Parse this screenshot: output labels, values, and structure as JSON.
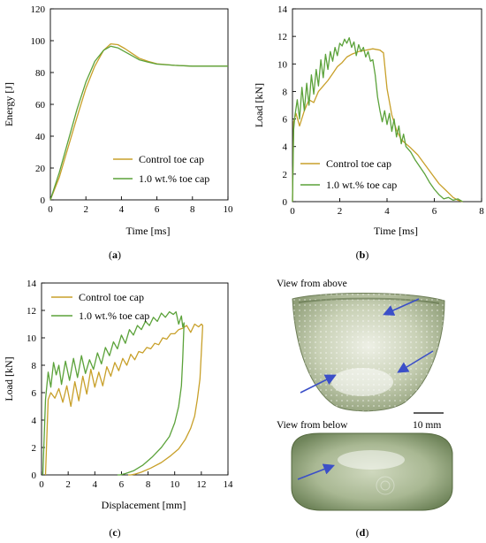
{
  "colors": {
    "control": "#C8A02A",
    "fiber": "#5BA23A",
    "arrow": "#3B4FC8"
  },
  "chart_data": [
    {
      "type": "line",
      "panel_label": "a",
      "xlabel": "Time [ms]",
      "ylabel": "Energy [J]",
      "xlim": [
        0,
        10
      ],
      "ylim": [
        0,
        120
      ],
      "xticks": [
        "0",
        "2",
        "4",
        "6",
        "8",
        "10"
      ],
      "yticks": [
        "0",
        "20",
        "40",
        "60",
        "80",
        "100",
        "120"
      ],
      "grid": false,
      "legend": "bottom-right",
      "series": [
        {
          "name": "Control toe cap",
          "color_key": "control",
          "x": [
            0,
            0.5,
            1,
            1.5,
            2,
            2.5,
            3,
            3.4,
            3.8,
            4.2,
            4.6,
            5,
            5.5,
            6,
            7,
            8,
            9,
            10
          ],
          "y": [
            0,
            14,
            33,
            52,
            70,
            84,
            94,
            98,
            97.5,
            95,
            92,
            89,
            87,
            85.5,
            84.5,
            84,
            84,
            84
          ]
        },
        {
          "name": "1.0 wt.% toe cap",
          "color_key": "fiber",
          "x": [
            0,
            0.5,
            1,
            1.5,
            2,
            2.5,
            3,
            3.4,
            3.8,
            4.2,
            4.6,
            5,
            5.5,
            6,
            7,
            8,
            9,
            10
          ],
          "y": [
            0,
            17,
            37,
            57,
            74,
            87,
            94,
            96.5,
            95.5,
            93,
            90.5,
            88,
            86.5,
            85.3,
            84.5,
            84,
            84,
            84
          ]
        }
      ]
    },
    {
      "type": "line",
      "panel_label": "b",
      "xlabel": "Time [ms]",
      "ylabel": "Load [kN]",
      "xlim": [
        0,
        8
      ],
      "ylim": [
        0,
        14
      ],
      "xticks": [
        "0",
        "2",
        "4",
        "6",
        "8"
      ],
      "yticks": [
        "0",
        "2",
        "4",
        "6",
        "8",
        "10",
        "12",
        "14"
      ],
      "grid": false,
      "legend": "bottom-right",
      "series": [
        {
          "name": "Control toe cap",
          "color_key": "control",
          "x": [
            0,
            0.05,
            0.15,
            0.3,
            0.5,
            0.7,
            0.9,
            1.1,
            1.3,
            1.5,
            1.7,
            1.9,
            2.1,
            2.3,
            2.5,
            2.8,
            3.1,
            3.4,
            3.7,
            3.85,
            4.0,
            4.2,
            4.4,
            4.6,
            4.8,
            5.0,
            5.3,
            5.6,
            5.9,
            6.2,
            6.5,
            6.8,
            7.0,
            7.2
          ],
          "y": [
            0,
            5.8,
            6.4,
            5.5,
            6.6,
            7.4,
            7.2,
            8.0,
            8.4,
            8.8,
            9.3,
            9.8,
            10.1,
            10.5,
            10.7,
            10.9,
            11.0,
            11.1,
            11.0,
            10.8,
            8.2,
            6.3,
            5.2,
            4.5,
            4.2,
            3.9,
            3.4,
            2.7,
            2.0,
            1.3,
            0.8,
            0.3,
            0.1,
            0
          ]
        },
        {
          "name": "1.0 wt.% toe cap",
          "color_key": "fiber",
          "x": [
            0,
            0.05,
            0.1,
            0.2,
            0.3,
            0.4,
            0.5,
            0.6,
            0.7,
            0.8,
            0.9,
            1.0,
            1.1,
            1.2,
            1.3,
            1.4,
            1.5,
            1.6,
            1.7,
            1.8,
            1.9,
            2.0,
            2.1,
            2.2,
            2.3,
            2.4,
            2.5,
            2.6,
            2.7,
            2.8,
            2.9,
            3.0,
            3.1,
            3.2,
            3.3,
            3.4,
            3.5,
            3.6,
            3.7,
            3.8,
            3.9,
            4.0,
            4.1,
            4.2,
            4.3,
            4.4,
            4.5,
            4.6,
            4.7,
            4.8,
            5.0,
            5.2,
            5.4,
            5.6,
            5.8,
            6.0,
            6.2,
            6.4,
            6.6,
            6.8,
            7.0,
            7.2
          ],
          "y": [
            0,
            5.2,
            6.2,
            7.4,
            6.0,
            8.3,
            6.6,
            8.6,
            7.0,
            9.2,
            7.8,
            9.6,
            8.4,
            10.3,
            9.0,
            10.7,
            9.6,
            10.9,
            10.2,
            11.2,
            10.6,
            11.5,
            11.3,
            11.8,
            11.5,
            11.9,
            11.2,
            11.6,
            10.6,
            11.4,
            10.9,
            11.2,
            10.5,
            10.9,
            10.2,
            10.3,
            9.2,
            7.6,
            6.6,
            5.8,
            6.6,
            5.6,
            6.4,
            5.1,
            6.0,
            4.7,
            5.5,
            4.2,
            4.9,
            4.0,
            3.6,
            3.0,
            2.5,
            2.0,
            1.4,
            0.9,
            0.5,
            0.2,
            0.3,
            0.1,
            0.2,
            0
          ]
        }
      ]
    },
    {
      "type": "line",
      "panel_label": "c",
      "xlabel": "Displacement [mm]",
      "ylabel": "Load [kN]",
      "xlim": [
        0,
        14
      ],
      "ylim": [
        0,
        14
      ],
      "xticks": [
        "0",
        "2",
        "4",
        "6",
        "8",
        "10",
        "12",
        "14"
      ],
      "yticks": [
        "0",
        "2",
        "4",
        "6",
        "8",
        "10",
        "12",
        "14"
      ],
      "grid": false,
      "legend": "top-left",
      "series": [
        {
          "name": "Control toe cap",
          "color_key": "control",
          "x": [
            0.3,
            0.5,
            0.7,
            1.0,
            1.3,
            1.6,
            1.9,
            2.2,
            2.5,
            2.8,
            3.1,
            3.4,
            3.7,
            4.0,
            4.3,
            4.6,
            4.9,
            5.2,
            5.5,
            5.8,
            6.1,
            6.4,
            6.7,
            7.0,
            7.3,
            7.6,
            7.9,
            8.2,
            8.5,
            8.8,
            9.1,
            9.4,
            9.7,
            10.0,
            10.3,
            10.6,
            10.9,
            11.2,
            11.5,
            11.8,
            12.0,
            12.1,
            12.0,
            11.9,
            11.7,
            11.5,
            11.2,
            10.8,
            10.3,
            9.7,
            9.0,
            8.2,
            7.5,
            7.0,
            6.7,
            6.5
          ],
          "y": [
            0,
            5.5,
            6.0,
            5.6,
            6.3,
            5.3,
            6.5,
            5.0,
            6.8,
            5.4,
            7.2,
            5.9,
            7.7,
            6.4,
            7.5,
            6.5,
            7.9,
            7.2,
            8.2,
            7.6,
            8.5,
            8.0,
            8.8,
            8.4,
            9.0,
            8.9,
            9.3,
            9.2,
            9.6,
            9.5,
            10.0,
            9.9,
            10.3,
            10.3,
            10.6,
            10.7,
            10.9,
            10.4,
            11.0,
            10.8,
            11.0,
            10.9,
            9.0,
            7.0,
            5.5,
            4.3,
            3.4,
            2.6,
            1.9,
            1.4,
            0.9,
            0.5,
            0.2,
            0.05,
            0,
            0
          ]
        },
        {
          "name": "1.0 wt.% toe cap",
          "color_key": "fiber",
          "x": [
            0.1,
            0.3,
            0.5,
            0.7,
            0.9,
            1.1,
            1.3,
            1.5,
            1.8,
            2.1,
            2.4,
            2.7,
            3.0,
            3.3,
            3.6,
            3.9,
            4.2,
            4.5,
            4.8,
            5.1,
            5.4,
            5.7,
            6.0,
            6.3,
            6.6,
            6.9,
            7.2,
            7.5,
            7.8,
            8.1,
            8.4,
            8.7,
            9.0,
            9.3,
            9.6,
            9.9,
            10.1,
            10.3,
            10.5,
            10.6,
            10.7,
            10.6,
            10.5,
            10.3,
            10.0,
            9.6,
            9.0,
            8.3,
            7.6,
            6.9,
            6.3,
            5.9,
            5.7
          ],
          "y": [
            0,
            5.5,
            7.5,
            6.4,
            8.2,
            7.3,
            8.0,
            6.6,
            8.3,
            6.9,
            8.5,
            7.1,
            8.7,
            7.4,
            8.4,
            7.7,
            8.9,
            8.1,
            9.3,
            8.7,
            9.7,
            9.2,
            10.2,
            9.6,
            10.6,
            10.2,
            10.9,
            10.6,
            11.2,
            10.9,
            11.5,
            11.2,
            11.8,
            11.5,
            11.9,
            11.7,
            11.9,
            11.0,
            11.6,
            10.8,
            11.1,
            8.5,
            6.5,
            5.0,
            3.8,
            2.8,
            2.0,
            1.3,
            0.7,
            0.3,
            0.1,
            0,
            0
          ]
        }
      ]
    }
  ],
  "photos": {
    "panel_label": "d",
    "top_caption": "View from above",
    "bottom_caption": "View from below",
    "scale_label": "10 mm"
  }
}
